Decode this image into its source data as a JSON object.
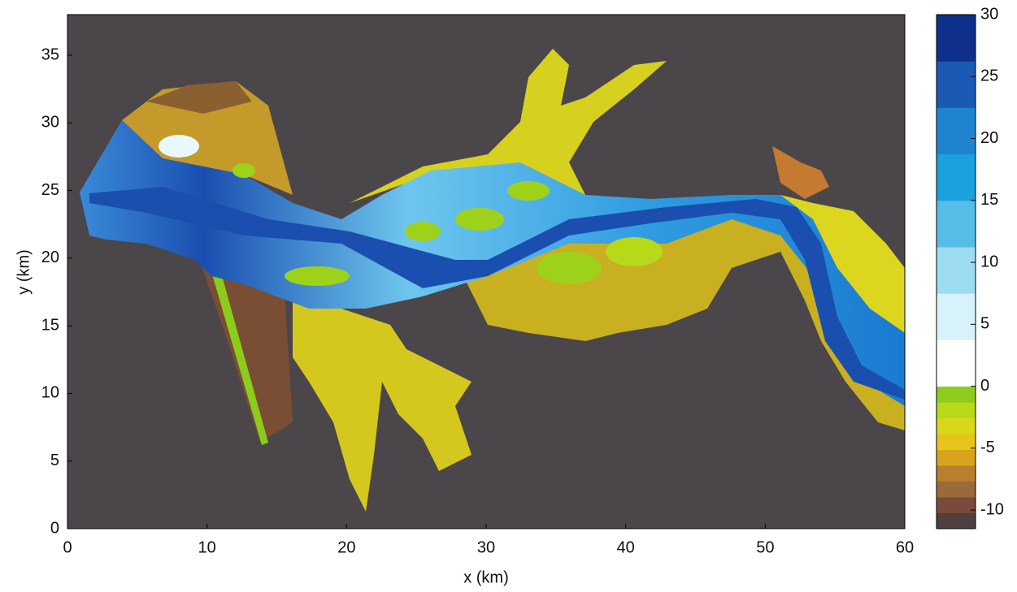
{
  "chart_data": {
    "type": "image",
    "xlabel": "x (km)",
    "ylabel": "y (km)",
    "xlim": [
      0,
      60
    ],
    "ylim": [
      0,
      38
    ],
    "xticks": [
      0,
      10,
      20,
      30,
      40,
      50,
      60
    ],
    "yticks": [
      0,
      5,
      10,
      15,
      20,
      25,
      30,
      35
    ],
    "clim": [
      -11.5,
      30
    ],
    "cticks": [
      -10,
      -5,
      0,
      5,
      10,
      15,
      20,
      25,
      30
    ],
    "colormap_negative": [
      "#4f3f3f",
      "#7a4a3a",
      "#9a6a3a",
      "#b8802c",
      "#d8a21c",
      "#e6c41a",
      "#d8d81a",
      "#b8d81a",
      "#8ccc1a"
    ],
    "colormap_positive": [
      "#ffffff",
      "#d8f2fb",
      "#9edcf2",
      "#56bde8",
      "#1aa2df",
      "#1f84cf",
      "#1a5ab4",
      "#0e2f8c"
    ],
    "background": "#4b464a"
  }
}
